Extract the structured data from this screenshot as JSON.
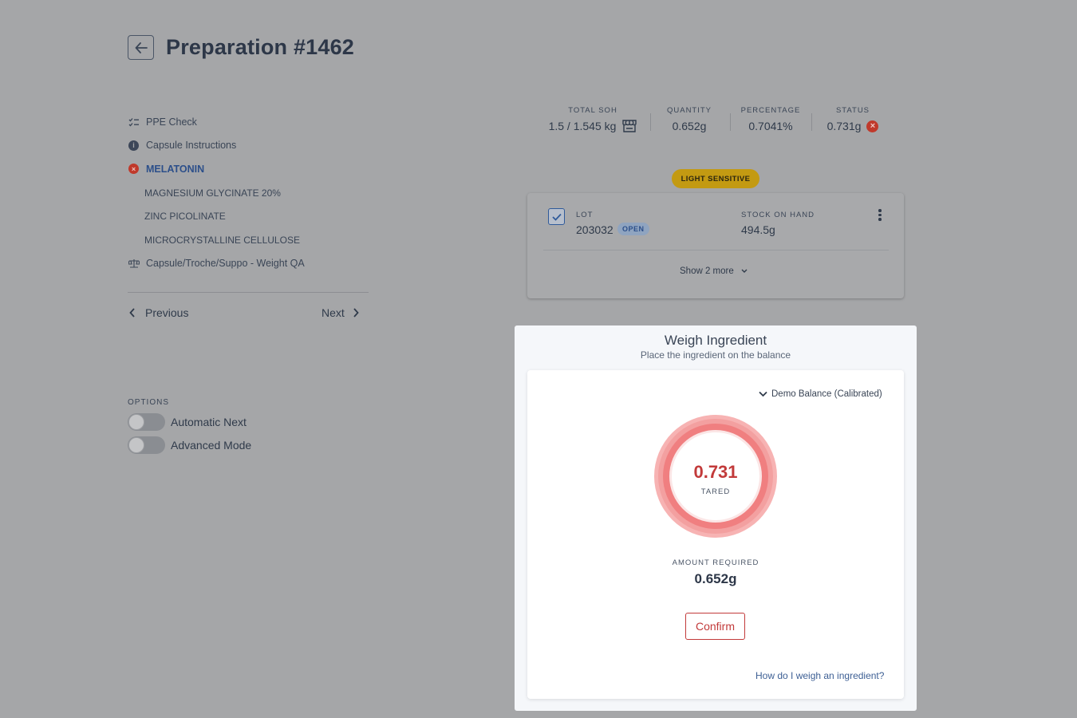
{
  "header": {
    "title": "Preparation #1462"
  },
  "steps": [
    {
      "label": "PPE Check",
      "icon": "checklist-icon",
      "type": "main"
    },
    {
      "label": "Capsule Instructions",
      "icon": "info-icon",
      "type": "main"
    },
    {
      "label": "MELATONIN",
      "icon": "error-icon",
      "type": "active"
    },
    {
      "label": "MAGNESIUM GLYCINATE 20%",
      "type": "sub"
    },
    {
      "label": "ZINC PICOLINATE",
      "type": "sub"
    },
    {
      "label": "MICROCRYSTALLINE CELLULOSE",
      "type": "sub"
    },
    {
      "label": "Capsule/Troche/Suppo - Weight QA",
      "icon": "scale-icon",
      "type": "main"
    }
  ],
  "nav": {
    "previous_label": "Previous",
    "next_label": "Next"
  },
  "options": {
    "label": "OPTIONS",
    "automatic_next": {
      "label": "Automatic Next",
      "on": false
    },
    "advanced_mode": {
      "label": "Advanced Mode",
      "on": false
    }
  },
  "stats": {
    "total_soh": {
      "label": "TOTAL SOH",
      "value": "1.5 / 1.545 kg"
    },
    "quantity": {
      "label": "QUANTITY",
      "value": "0.652g"
    },
    "percentage": {
      "label": "PERCENTAGE",
      "value": "0.7041%"
    },
    "status": {
      "label": "STATUS",
      "value": "0.731g"
    }
  },
  "warning_badge": "LIGHT SENSITIVE",
  "lot": {
    "lot_label": "LOT",
    "lot_value": "203032",
    "open_badge": "OPEN",
    "stock_label": "STOCK ON HAND",
    "stock_value": "494.5g",
    "show_more": "Show 2 more",
    "checked": true
  },
  "weigh": {
    "title": "Weigh Ingredient",
    "subtitle": "Place the ingredient on the balance",
    "balance": "Demo Balance (Calibrated)",
    "reading": "0.731",
    "reading_label": "TARED",
    "amount_required_label": "AMOUNT REQUIRED",
    "amount_required_value": "0.652g",
    "confirm_label": "Confirm",
    "help_link": "How do I weigh an ingredient?"
  },
  "colors": {
    "error": "#c23a3a",
    "accent": "#2c4f8a",
    "warning": "#c39a12",
    "gauge_outer": "#f4a6a6",
    "gauge_ring": "#f07f80"
  }
}
